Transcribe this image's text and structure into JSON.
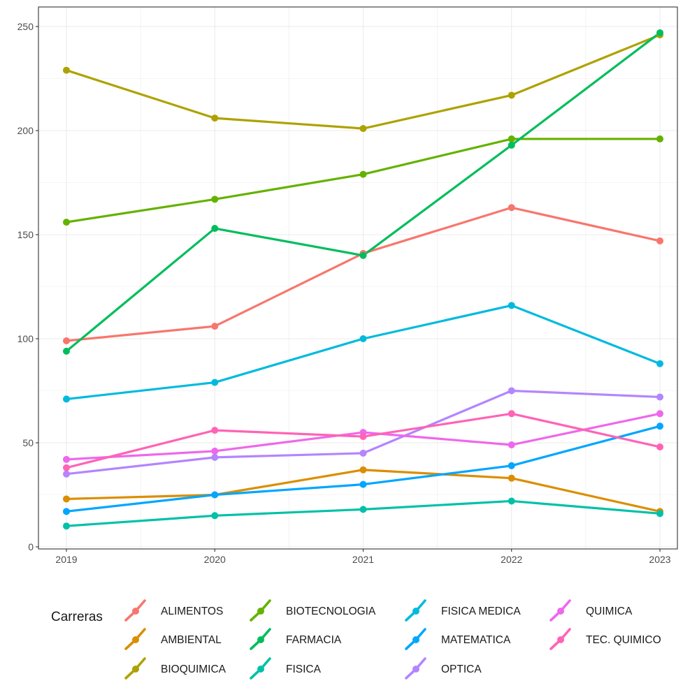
{
  "chart_data": {
    "type": "line",
    "x": [
      "2019",
      "2020",
      "2021",
      "2022",
      "2023"
    ],
    "ylim": [
      0,
      250
    ],
    "y_ticks": [
      "0",
      "50",
      "100",
      "150",
      "200",
      "250"
    ],
    "grid": true,
    "legend_title": "Carreras",
    "legend_position": "bottom",
    "series": [
      {
        "name": "ALIMENTOS",
        "color": "#F8766D",
        "values": [
          99,
          106,
          141,
          163,
          147
        ]
      },
      {
        "name": "AMBIENTAL",
        "color": "#DB8E00",
        "values": [
          23,
          25,
          37,
          33,
          17
        ]
      },
      {
        "name": "BIOQUIMICA",
        "color": "#AEA200",
        "values": [
          229,
          206,
          201,
          217,
          246
        ]
      },
      {
        "name": "BIOTECNOLOGIA",
        "color": "#64B200",
        "values": [
          156,
          167,
          179,
          196,
          196
        ]
      },
      {
        "name": "FARMACIA",
        "color": "#00BD5C",
        "values": [
          94,
          153,
          140,
          193,
          247
        ]
      },
      {
        "name": "FISICA",
        "color": "#00C1A7",
        "values": [
          10,
          15,
          18,
          22,
          16
        ]
      },
      {
        "name": "FISICA MEDICA",
        "color": "#00BADE",
        "values": [
          71,
          79,
          100,
          116,
          88
        ]
      },
      {
        "name": "MATEMATICA",
        "color": "#00A6FF",
        "values": [
          17,
          25,
          30,
          39,
          58
        ]
      },
      {
        "name": "OPTICA",
        "color": "#B385FF",
        "values": [
          35,
          43,
          45,
          75,
          72
        ]
      },
      {
        "name": "QUIMICA",
        "color": "#EF67EB",
        "values": [
          42,
          46,
          55,
          49,
          64
        ]
      },
      {
        "name": "TEC. QUIMICO",
        "color": "#FF63B6",
        "values": [
          38,
          56,
          53,
          64,
          48
        ]
      }
    ]
  }
}
